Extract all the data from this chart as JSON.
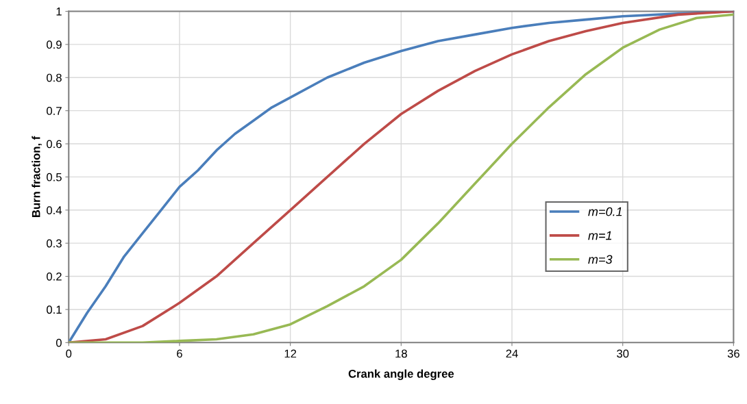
{
  "chart_data": {
    "type": "line",
    "xlabel": "Crank angle degree",
    "ylabel": "Burn fraction, f",
    "xlim": [
      0,
      36
    ],
    "xticks": [
      0,
      6,
      12,
      18,
      24,
      30,
      36
    ],
    "ylim": [
      0,
      1
    ],
    "yticks": [
      0,
      0.1,
      0.2,
      0.3,
      0.4,
      0.5,
      0.6,
      0.7,
      0.8,
      0.9,
      1
    ],
    "grid": true,
    "legend": "right",
    "marker": "none",
    "line_style": "solid",
    "series": [
      {
        "name": "m=0.1",
        "color": "#4a7ebb",
        "x": [
          0,
          1,
          2,
          3,
          4,
          5,
          6,
          7,
          8,
          9,
          10,
          11,
          12,
          14,
          16,
          18,
          20,
          22,
          24,
          26,
          28,
          30,
          33,
          36
        ],
        "values": [
          0,
          0.09,
          0.17,
          0.26,
          0.33,
          0.4,
          0.47,
          0.52,
          0.58,
          0.63,
          0.67,
          0.71,
          0.74,
          0.8,
          0.845,
          0.88,
          0.91,
          0.93,
          0.95,
          0.965,
          0.975,
          0.985,
          0.993,
          1
        ]
      },
      {
        "name": "m=1",
        "color": "#be4b48",
        "x": [
          0,
          2,
          4,
          6,
          8,
          10,
          12,
          14,
          16,
          18,
          20,
          22,
          24,
          26,
          28,
          30,
          33,
          36
        ],
        "values": [
          0,
          0.01,
          0.05,
          0.12,
          0.2,
          0.3,
          0.4,
          0.5,
          0.6,
          0.69,
          0.76,
          0.82,
          0.87,
          0.91,
          0.94,
          0.965,
          0.99,
          1
        ]
      },
      {
        "name": "m=3",
        "color": "#98b954",
        "x": [
          0,
          4,
          6,
          8,
          10,
          12,
          14,
          16,
          18,
          20,
          22,
          24,
          26,
          28,
          30,
          32,
          34,
          36
        ],
        "values": [
          0,
          0,
          0.005,
          0.01,
          0.025,
          0.055,
          0.11,
          0.17,
          0.25,
          0.36,
          0.48,
          0.6,
          0.71,
          0.81,
          0.89,
          0.945,
          0.98,
          0.99
        ]
      }
    ]
  }
}
